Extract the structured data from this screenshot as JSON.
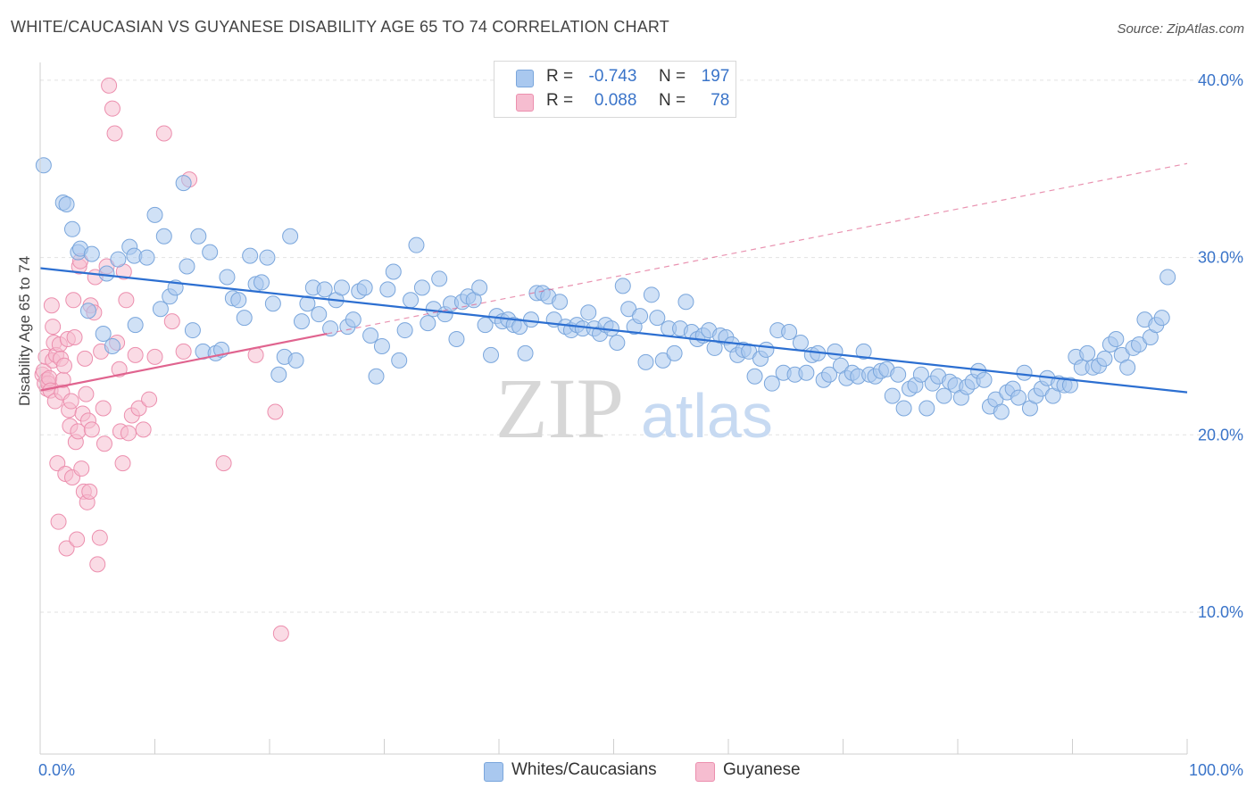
{
  "title": "WHITE/CAUCASIAN VS GUYANESE DISABILITY AGE 65 TO 74 CORRELATION CHART",
  "source": "Source: ZipAtlas.com",
  "watermark": {
    "zip": "ZIP",
    "atlas": "atlas"
  },
  "legend_top": [
    {
      "r_label": "R =",
      "r_value": "-0.743",
      "n_label": "N =",
      "n_value": "197"
    },
    {
      "r_label": "R =",
      "r_value": "0.088",
      "n_label": "N =",
      "n_value": "78"
    }
  ],
  "legend_bottom": [
    "Whites/Caucasians",
    "Guyanese"
  ],
  "colors": {
    "blue_fill": "#a9c8ef",
    "blue_stroke": "#7aa6dc",
    "blue_line": "#2c6fd1",
    "pink_fill": "#f6bdd0",
    "pink_stroke": "#ec8fae",
    "pink_line": "#e0648f",
    "axis_text": "#3a74c9",
    "grid": "#e2e2e2"
  },
  "chart_data": {
    "type": "scatter",
    "title": "WHITE/CAUCASIAN VS GUYANESE DISABILITY AGE 65 TO 74 CORRELATION CHART",
    "xlabel": "",
    "ylabel": "Disability Age 65 to 74",
    "xlim": [
      0,
      100
    ],
    "ylim": [
      2,
      41
    ],
    "x_tick_labels": [
      "0.0%",
      "100.0%"
    ],
    "y_ticks": [
      10,
      20,
      30,
      40
    ],
    "y_tick_labels": [
      "10.0%",
      "20.0%",
      "30.0%",
      "40.0%"
    ],
    "grid": true,
    "legend_position": "top-center",
    "series": [
      {
        "name": "Whites/Caucasians",
        "r": -0.743,
        "n": 197,
        "trend": {
          "x": [
            0,
            100
          ],
          "y": [
            29.4,
            22.4
          ],
          "style": "solid"
        },
        "points": [
          [
            0.3,
            35.2
          ],
          [
            2,
            33.1
          ],
          [
            2.3,
            33
          ],
          [
            2.8,
            31.6
          ],
          [
            3.3,
            30.3
          ],
          [
            3.5,
            30.5
          ],
          [
            4.2,
            27
          ],
          [
            4.5,
            30.2
          ],
          [
            5.5,
            25.7
          ],
          [
            5.8,
            29.1
          ],
          [
            6.3,
            25
          ],
          [
            6.8,
            29.9
          ],
          [
            7.8,
            30.6
          ],
          [
            8.2,
            30.1
          ],
          [
            8.3,
            26.2
          ],
          [
            9.3,
            30
          ],
          [
            10,
            32.4
          ],
          [
            10.5,
            27.1
          ],
          [
            10.8,
            31.2
          ],
          [
            11.3,
            27.8
          ],
          [
            11.8,
            28.3
          ],
          [
            12.5,
            34.2
          ],
          [
            12.8,
            29.5
          ],
          [
            13.3,
            25.9
          ],
          [
            13.8,
            31.2
          ],
          [
            14.2,
            24.7
          ],
          [
            14.8,
            30.3
          ],
          [
            15.3,
            24.6
          ],
          [
            15.8,
            24.8
          ],
          [
            16.3,
            28.9
          ],
          [
            16.8,
            27.7
          ],
          [
            17.3,
            27.6
          ],
          [
            17.8,
            26.6
          ],
          [
            18.3,
            30.1
          ],
          [
            18.8,
            28.5
          ],
          [
            19.3,
            28.6
          ],
          [
            19.8,
            30
          ],
          [
            20.3,
            27.4
          ],
          [
            20.8,
            23.4
          ],
          [
            21.3,
            24.4
          ],
          [
            21.8,
            31.2
          ],
          [
            22.3,
            24.2
          ],
          [
            22.8,
            26.4
          ],
          [
            23.3,
            27.4
          ],
          [
            23.8,
            28.3
          ],
          [
            24.3,
            26.8
          ],
          [
            24.8,
            28.2
          ],
          [
            25.3,
            26
          ],
          [
            25.8,
            27.6
          ],
          [
            26.3,
            28.3
          ],
          [
            26.8,
            26.1
          ],
          [
            27.3,
            26.5
          ],
          [
            27.8,
            28.1
          ],
          [
            28.3,
            28.3
          ],
          [
            28.8,
            25.6
          ],
          [
            29.3,
            23.3
          ],
          [
            29.8,
            25
          ],
          [
            30.3,
            28.2
          ],
          [
            30.8,
            29.2
          ],
          [
            31.3,
            24.2
          ],
          [
            31.8,
            25.9
          ],
          [
            32.3,
            27.6
          ],
          [
            32.8,
            30.7
          ],
          [
            33.3,
            28.3
          ],
          [
            33.8,
            26.3
          ],
          [
            34.3,
            27.1
          ],
          [
            34.8,
            28.8
          ],
          [
            35.3,
            26.8
          ],
          [
            35.8,
            27.4
          ],
          [
            36.3,
            25.4
          ],
          [
            36.8,
            27.5
          ],
          [
            37.3,
            27.8
          ],
          [
            37.8,
            27.6
          ],
          [
            38.3,
            28.3
          ],
          [
            38.8,
            26.2
          ],
          [
            39.3,
            24.5
          ],
          [
            39.8,
            26.7
          ],
          [
            40.3,
            26.4
          ],
          [
            40.8,
            26.5
          ],
          [
            41.3,
            26.2
          ],
          [
            41.8,
            26.1
          ],
          [
            42.3,
            24.6
          ],
          [
            42.8,
            26.5
          ],
          [
            43.3,
            28
          ],
          [
            43.8,
            28
          ],
          [
            44.3,
            27.8
          ],
          [
            44.8,
            26.5
          ],
          [
            45.3,
            27.5
          ],
          [
            45.8,
            26.1
          ],
          [
            46.3,
            25.9
          ],
          [
            46.8,
            26.2
          ],
          [
            47.3,
            26
          ],
          [
            47.8,
            26.9
          ],
          [
            48.3,
            26
          ],
          [
            48.8,
            25.7
          ],
          [
            49.3,
            26.2
          ],
          [
            49.8,
            26
          ],
          [
            50.3,
            25.2
          ],
          [
            50.8,
            28.4
          ],
          [
            51.3,
            27.1
          ],
          [
            51.8,
            26.1
          ],
          [
            52.3,
            26.7
          ],
          [
            52.8,
            24.1
          ],
          [
            53.3,
            27.9
          ],
          [
            53.8,
            26.6
          ],
          [
            54.3,
            24.2
          ],
          [
            54.8,
            26
          ],
          [
            55.3,
            24.6
          ],
          [
            55.8,
            26
          ],
          [
            56.3,
            27.5
          ],
          [
            56.8,
            25.8
          ],
          [
            57.3,
            25.4
          ],
          [
            57.8,
            25.6
          ],
          [
            58.3,
            25.9
          ],
          [
            58.8,
            24.9
          ],
          [
            59.3,
            25.6
          ],
          [
            59.8,
            25.5
          ],
          [
            60.3,
            25.1
          ],
          [
            60.8,
            24.5
          ],
          [
            61.3,
            24.8
          ],
          [
            61.8,
            24.7
          ],
          [
            62.3,
            23.3
          ],
          [
            62.8,
            24.3
          ],
          [
            63.3,
            24.8
          ],
          [
            63.8,
            22.9
          ],
          [
            64.3,
            25.9
          ],
          [
            64.8,
            23.5
          ],
          [
            65.3,
            25.8
          ],
          [
            65.8,
            23.4
          ],
          [
            66.3,
            25.2
          ],
          [
            66.8,
            23.5
          ],
          [
            67.3,
            24.5
          ],
          [
            67.8,
            24.6
          ],
          [
            68.3,
            23.1
          ],
          [
            68.8,
            23.4
          ],
          [
            69.3,
            24.7
          ],
          [
            69.8,
            23.9
          ],
          [
            70.3,
            23.2
          ],
          [
            70.8,
            23.5
          ],
          [
            71.3,
            23.3
          ],
          [
            71.8,
            24.7
          ],
          [
            72.3,
            23.4
          ],
          [
            72.8,
            23.3
          ],
          [
            73.3,
            23.6
          ],
          [
            73.8,
            23.7
          ],
          [
            74.3,
            22.2
          ],
          [
            74.8,
            23.4
          ],
          [
            75.3,
            21.5
          ],
          [
            75.8,
            22.6
          ],
          [
            76.3,
            22.8
          ],
          [
            76.8,
            23.4
          ],
          [
            77.3,
            21.5
          ],
          [
            77.8,
            22.9
          ],
          [
            78.3,
            23.3
          ],
          [
            78.8,
            22.2
          ],
          [
            79.3,
            23
          ],
          [
            79.8,
            22.8
          ],
          [
            80.3,
            22.1
          ],
          [
            80.8,
            22.7
          ],
          [
            81.3,
            23
          ],
          [
            81.8,
            23.6
          ],
          [
            82.3,
            23.1
          ],
          [
            82.8,
            21.6
          ],
          [
            83.3,
            22
          ],
          [
            83.8,
            21.3
          ],
          [
            84.3,
            22.4
          ],
          [
            84.8,
            22.6
          ],
          [
            85.3,
            22.1
          ],
          [
            85.8,
            23.5
          ],
          [
            86.3,
            21.5
          ],
          [
            86.8,
            22.2
          ],
          [
            87.3,
            22.6
          ],
          [
            87.8,
            23.2
          ],
          [
            88.3,
            22.2
          ],
          [
            88.8,
            22.9
          ],
          [
            89.3,
            22.8
          ],
          [
            89.8,
            22.8
          ],
          [
            90.3,
            24.4
          ],
          [
            90.8,
            23.8
          ],
          [
            91.3,
            24.6
          ],
          [
            91.8,
            23.8
          ],
          [
            92.3,
            23.9
          ],
          [
            92.8,
            24.3
          ],
          [
            93.3,
            25.1
          ],
          [
            93.8,
            25.4
          ],
          [
            94.3,
            24.5
          ],
          [
            94.8,
            23.8
          ],
          [
            95.3,
            24.9
          ],
          [
            95.8,
            25.1
          ],
          [
            96.3,
            26.5
          ],
          [
            96.8,
            25.5
          ],
          [
            97.3,
            26.2
          ],
          [
            97.8,
            26.6
          ],
          [
            98.3,
            28.9
          ]
        ]
      },
      {
        "name": "Guyanese",
        "r": 0.088,
        "n": 78,
        "trend": {
          "x": [
            0,
            25
          ],
          "y": [
            22.5,
            25.7
          ],
          "style": "solid",
          "extended_to": [
            100,
            35.3
          ],
          "extended_style": "dashed"
        },
        "points": [
          [
            0.2,
            23.4
          ],
          [
            0.3,
            23.6
          ],
          [
            0.4,
            22.9
          ],
          [
            0.5,
            24.4
          ],
          [
            0.6,
            22.6
          ],
          [
            0.6,
            23.1
          ],
          [
            0.7,
            22.9
          ],
          [
            0.8,
            23.2
          ],
          [
            0.9,
            22.5
          ],
          [
            1,
            27.3
          ],
          [
            1.1,
            26.1
          ],
          [
            1.1,
            24.2
          ],
          [
            1.2,
            25.2
          ],
          [
            1.3,
            21.9
          ],
          [
            1.4,
            24.5
          ],
          [
            1.5,
            18.4
          ],
          [
            1.6,
            15.1
          ],
          [
            1.7,
            25.1
          ],
          [
            1.8,
            24.3
          ],
          [
            1.9,
            22.4
          ],
          [
            2,
            23.1
          ],
          [
            2.1,
            23.9
          ],
          [
            2.2,
            17.8
          ],
          [
            2.3,
            13.6
          ],
          [
            2.4,
            25.4
          ],
          [
            2.5,
            21.4
          ],
          [
            2.6,
            20.5
          ],
          [
            2.7,
            21.9
          ],
          [
            2.8,
            17.6
          ],
          [
            2.9,
            27.6
          ],
          [
            3,
            25.5
          ],
          [
            3.1,
            19.6
          ],
          [
            3.2,
            14.1
          ],
          [
            3.3,
            20.2
          ],
          [
            3.4,
            29.5
          ],
          [
            3.5,
            29.8
          ],
          [
            3.6,
            18.1
          ],
          [
            3.7,
            21.2
          ],
          [
            3.8,
            16.8
          ],
          [
            3.9,
            24.3
          ],
          [
            4,
            22.3
          ],
          [
            4.1,
            16.2
          ],
          [
            4.2,
            20.8
          ],
          [
            4.3,
            16.8
          ],
          [
            4.4,
            27.3
          ],
          [
            4.5,
            20.3
          ],
          [
            4.7,
            26.9
          ],
          [
            4.8,
            28.9
          ],
          [
            5,
            12.7
          ],
          [
            5.2,
            14.2
          ],
          [
            5.3,
            24.7
          ],
          [
            5.5,
            21.5
          ],
          [
            5.6,
            19.5
          ],
          [
            5.8,
            29.5
          ],
          [
            6,
            39.7
          ],
          [
            6.3,
            38.4
          ],
          [
            6.5,
            37
          ],
          [
            6.7,
            25.2
          ],
          [
            6.9,
            23.7
          ],
          [
            7,
            20.2
          ],
          [
            7.2,
            18.4
          ],
          [
            7.3,
            29.2
          ],
          [
            7.5,
            27.6
          ],
          [
            7.7,
            20.1
          ],
          [
            8,
            21.1
          ],
          [
            8.3,
            24.5
          ],
          [
            8.6,
            21.5
          ],
          [
            9,
            20.3
          ],
          [
            9.5,
            22
          ],
          [
            10,
            24.4
          ],
          [
            10.8,
            37
          ],
          [
            11.5,
            26.4
          ],
          [
            12.5,
            24.7
          ],
          [
            13,
            34.4
          ],
          [
            16,
            18.4
          ],
          [
            18.8,
            24.5
          ],
          [
            20.5,
            21.3
          ],
          [
            21,
            8.8
          ]
        ]
      }
    ]
  }
}
